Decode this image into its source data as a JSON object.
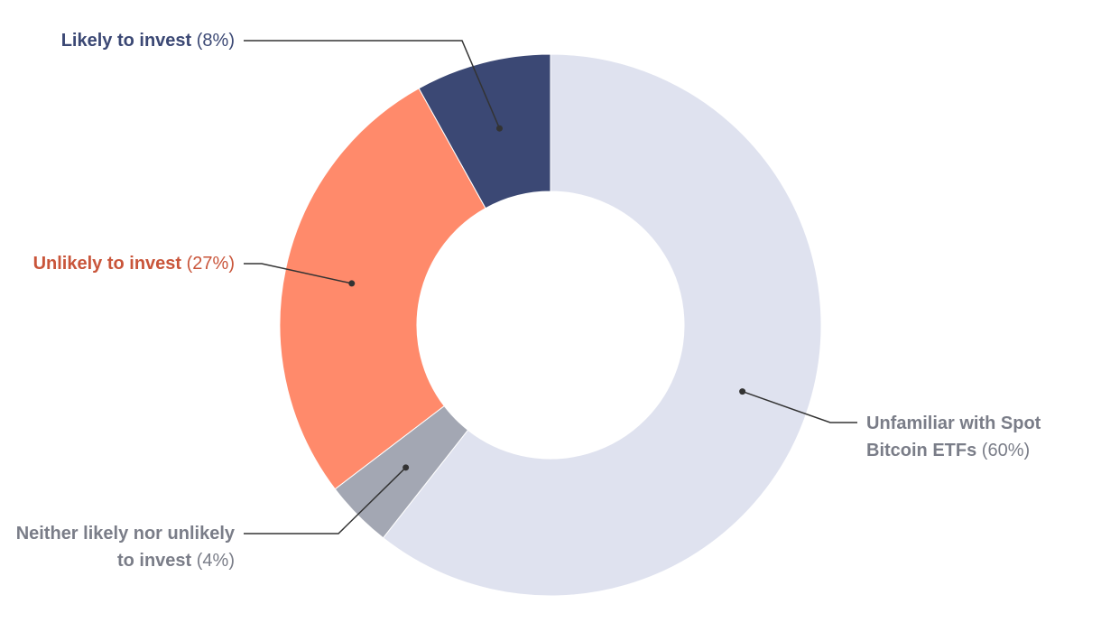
{
  "chart_data": {
    "type": "donut",
    "categories": [
      "Unfamiliar with Spot Bitcoin ETFs",
      "Neither likely nor unlikely to invest",
      "Unlikely to invest",
      "Likely to invest"
    ],
    "values": [
      60,
      4,
      27,
      8
    ],
    "value_labels": [
      "(60%)",
      "(4%)",
      "(27%)",
      "(8%)"
    ],
    "colors": [
      "#dfe2ef",
      "#a3a7b3",
      "#ff8a6b",
      "#3b4874"
    ],
    "label_colors": [
      "#7a7d88",
      "#7a7d88",
      "#c9553a",
      "#3b4874"
    ]
  }
}
